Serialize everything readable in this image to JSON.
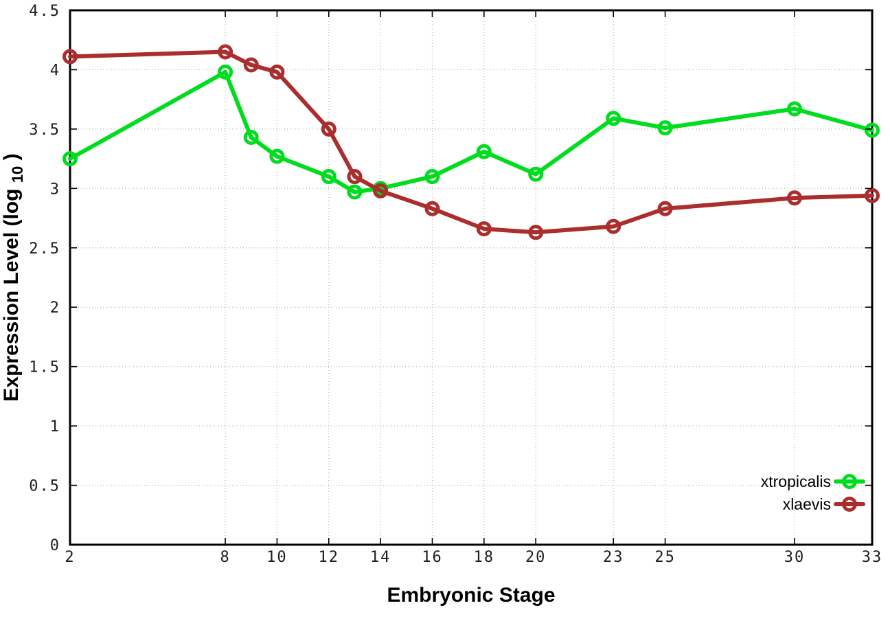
{
  "chart_data": {
    "type": "line",
    "title": "",
    "xlabel": "Embryonic Stage",
    "ylabel": "Expression Level (log10)",
    "ylabel_parts": {
      "pre": "Expression Level (log",
      "sub": "10",
      "post": ")"
    },
    "x": [
      2,
      8,
      9,
      10,
      12,
      13,
      14,
      16,
      18,
      20,
      23,
      25,
      30,
      33
    ],
    "x_ticks": [
      2,
      8,
      10,
      12,
      14,
      16,
      18,
      20,
      23,
      25,
      30,
      33
    ],
    "y_ticks": [
      "0",
      "0.5",
      "1",
      "1.5",
      "2",
      "2.5",
      "3",
      "3.5",
      "4",
      "4.5"
    ],
    "xlim": [
      2,
      33
    ],
    "ylim": [
      0,
      4.5
    ],
    "grid": true,
    "legend_position": "bottom-right",
    "series": [
      {
        "name": "xtropicalis",
        "color": "#00dc1e",
        "marker": "open-circle",
        "values": [
          3.25,
          3.98,
          3.43,
          3.27,
          3.1,
          2.97,
          3.0,
          3.1,
          3.31,
          3.12,
          3.59,
          3.51,
          3.67,
          3.49
        ]
      },
      {
        "name": "xlaevis",
        "color": "#ab2e2e",
        "marker": "open-circle",
        "values": [
          4.11,
          4.15,
          4.04,
          3.98,
          3.5,
          3.1,
          2.98,
          2.83,
          2.66,
          2.63,
          2.68,
          2.83,
          2.92,
          2.94
        ]
      }
    ]
  },
  "style": {
    "background": "#ffffff",
    "grid_color": "#b8b8b8",
    "axis_color": "#000000",
    "tick_label_color": "#1c1c1c"
  }
}
